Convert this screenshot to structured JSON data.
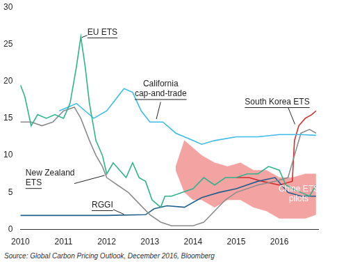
{
  "chart_data": {
    "type": "line",
    "source": "Source: Global Carbon Pricing Outlook, December 2016, Bloomberg",
    "xlim": [
      2010,
      2016.9
    ],
    "xticks": [
      2010,
      2011,
      2012,
      2013,
      2014,
      2015,
      2016
    ],
    "ylim": [
      0,
      30
    ],
    "yticks": [
      0,
      5,
      10,
      15,
      20,
      25,
      30
    ],
    "grid": false,
    "series": [
      {
        "name": "EU ETS",
        "color": "#2eb38b",
        "x": [
          2010,
          2010.1,
          2010.25,
          2010.4,
          2010.6,
          2010.8,
          2011,
          2011.15,
          2011.3,
          2011.4,
          2011.5,
          2011.6,
          2011.75,
          2011.9,
          2012,
          2012.15,
          2012.3,
          2012.45,
          2012.6,
          2012.75,
          2012.9,
          2013.05,
          2013.25,
          2013.35,
          2013.5,
          2013.75,
          2014,
          2014.25,
          2014.5,
          2014.75,
          2015,
          2015.25,
          2015.5,
          2015.75,
          2016,
          2016.15,
          2016.3,
          2016.5,
          2016.7,
          2016.85
        ],
        "values": [
          19.5,
          18,
          14,
          15.5,
          15,
          15.5,
          15,
          17,
          22,
          26,
          22,
          17,
          12,
          10,
          7.5,
          9,
          8,
          7,
          9,
          7,
          6.5,
          4,
          3,
          4.5,
          4.5,
          5,
          5.5,
          7,
          6,
          7,
          7,
          7.5,
          7.5,
          8.5,
          8,
          6,
          5.5,
          5,
          4.5,
          6
        ]
      },
      {
        "name": "California cap-and-trade",
        "color": "#3dbde6",
        "x": [
          2010.9,
          2011.1,
          2011.3,
          2011.5,
          2011.7,
          2012,
          2012.2,
          2012.4,
          2012.6,
          2012.8,
          2013,
          2013.3,
          2013.6,
          2014,
          2014.2,
          2014.5,
          2015,
          2015.5,
          2016,
          2016.5,
          2016.85
        ],
        "values": [
          16,
          16.5,
          17,
          16,
          15,
          16,
          17.5,
          19,
          18.5,
          16,
          14.5,
          14.5,
          13,
          12,
          11.5,
          12,
          12.5,
          12.5,
          12.8,
          12.8,
          12.7
        ]
      },
      {
        "name": "New Zealand ETS",
        "color": "#8c8c8c",
        "x": [
          2010,
          2010.25,
          2010.5,
          2010.75,
          2011,
          2011.25,
          2011.4,
          2011.6,
          2011.75,
          2011.9,
          2012,
          2012.25,
          2012.5,
          2012.75,
          2013,
          2013.25,
          2013.5,
          2014,
          2014.25,
          2014.5,
          2014.75,
          2015,
          2015.5,
          2015.9,
          2016.2,
          2016.35,
          2016.5,
          2016.7,
          2016.85
        ],
        "values": [
          14.5,
          14.5,
          14,
          14.5,
          16,
          16.5,
          15,
          12,
          10,
          8.5,
          7,
          6,
          5,
          3.5,
          2,
          1,
          0.5,
          0.5,
          1,
          2.5,
          4,
          5,
          6,
          6.5,
          7,
          10,
          13,
          13.5,
          13
        ]
      },
      {
        "name": "RGGI",
        "color": "#1f5f8b",
        "x": [
          2010,
          2011,
          2012,
          2012.9,
          2013.1,
          2013.4,
          2013.8,
          2014.2,
          2014.6,
          2015,
          2015.5,
          2015.9,
          2016.2,
          2016.5,
          2016.85
        ],
        "values": [
          1.9,
          1.9,
          1.9,
          2,
          2.8,
          3.2,
          3,
          4.3,
          5,
          5.5,
          6.5,
          7,
          5,
          4.5,
          4.5
        ]
      },
      {
        "name": "South Korea ETS",
        "color": "#d42a2a",
        "x": [
          2015,
          2015.3,
          2015.6,
          2016,
          2016.3,
          2016.35,
          2016.45,
          2016.6,
          2016.75,
          2016.85
        ],
        "values": [
          7,
          7,
          6.5,
          6,
          6.5,
          12,
          14,
          15,
          15.5,
          16
        ]
      },
      {
        "name": "Chine ETS pilots",
        "color": "#f4a3a3",
        "type": "area",
        "x": [
          2013.6,
          2013.8,
          2014,
          2014.2,
          2014.5,
          2014.8,
          2015.1,
          2015.4,
          2015.7,
          2016,
          2016.3,
          2016.6,
          2016.85
        ],
        "values": [
          8.5,
          12,
          11,
          10,
          9,
          8.5,
          9,
          8,
          8,
          7,
          7,
          7.5,
          7.5
        ],
        "low": [
          8,
          5,
          4,
          4,
          3,
          4,
          4,
          3,
          2.5,
          1.5,
          1.5,
          1.5,
          2
        ]
      }
    ]
  }
}
